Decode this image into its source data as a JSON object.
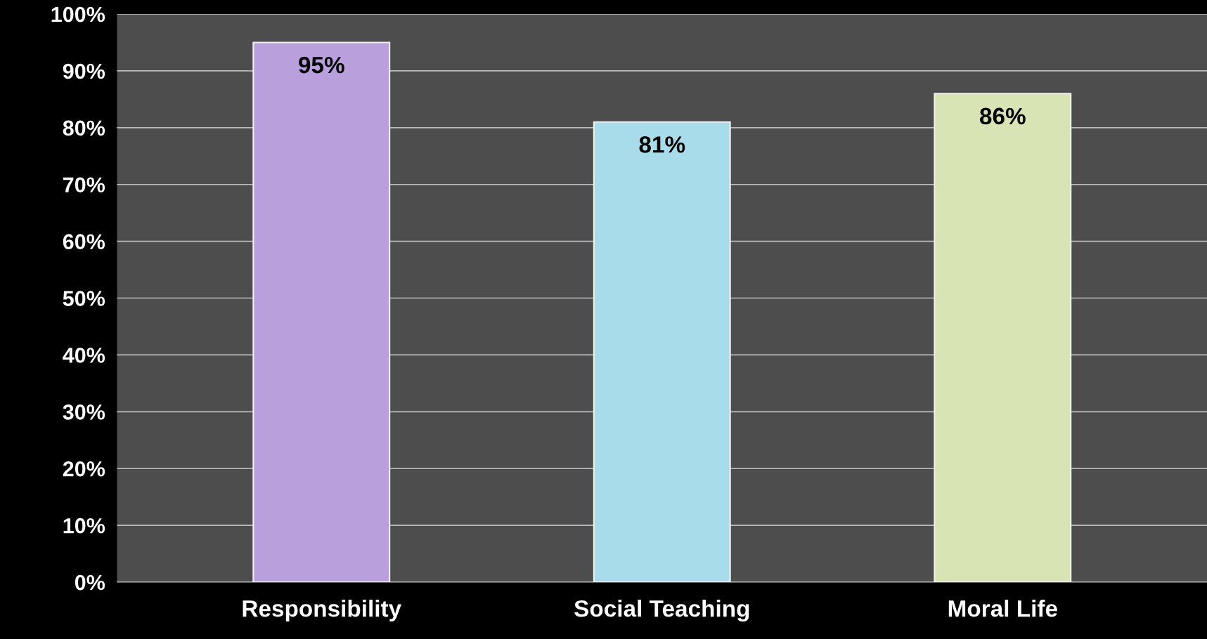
{
  "chart_data": {
    "type": "bar",
    "categories": [
      "Responsibility",
      "Social Teaching",
      "Moral Life"
    ],
    "values": [
      95,
      81,
      86
    ],
    "colors": [
      "#b9a0dc",
      "#a9dcea",
      "#d8e4b3"
    ],
    "value_labels": [
      "95%",
      "81%",
      "86%"
    ],
    "ylim": [
      0,
      100
    ],
    "yticks": [
      {
        "value": 0,
        "label": "0%"
      },
      {
        "value": 10,
        "label": "10%"
      },
      {
        "value": 20,
        "label": "20%"
      },
      {
        "value": 30,
        "label": "30%"
      },
      {
        "value": 40,
        "label": "40%"
      },
      {
        "value": 50,
        "label": "50%"
      },
      {
        "value": 60,
        "label": "60%"
      },
      {
        "value": 70,
        "label": "70%"
      },
      {
        "value": 80,
        "label": "80%"
      },
      {
        "value": 90,
        "label": "90%"
      },
      {
        "value": 100,
        "label": "100%"
      }
    ],
    "grid": "y",
    "legend": false
  }
}
